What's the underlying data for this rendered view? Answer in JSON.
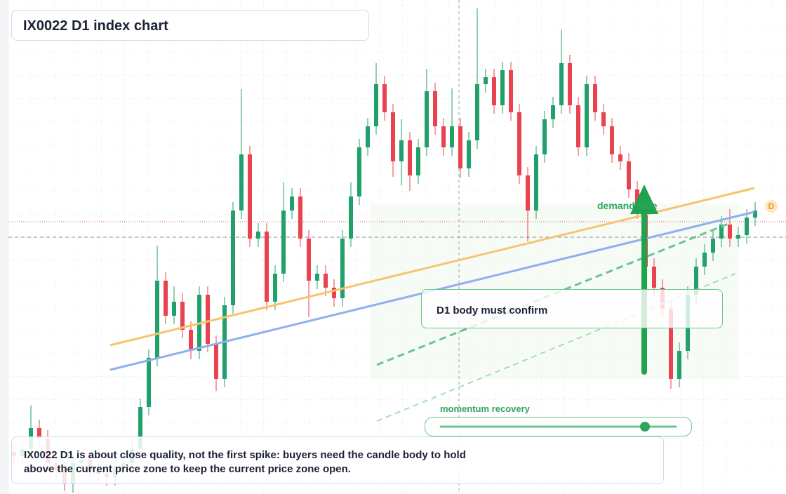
{
  "header": {
    "title": "IX0022 D1 index chart"
  },
  "chart_data": {
    "type": "candlestick",
    "ylim": [
      0,
      704
    ],
    "up_color": "#22a06b",
    "down_color": "#e8434f",
    "open": [
      60,
      54,
      64,
      94,
      79,
      44,
      34,
      14,
      44,
      49,
      34,
      29,
      24,
      39,
      44,
      64,
      124,
      194,
      304,
      254,
      274,
      234,
      204,
      284,
      214,
      164,
      269,
      404,
      484,
      364,
      374,
      274,
      314,
      404,
      424,
      364,
      304,
      314,
      294,
      279,
      364,
      424,
      494,
      524,
      584,
      544,
      474,
      504,
      454,
      494,
      574,
      524,
      494,
      524,
      464,
      504,
      584,
      594,
      554,
      604,
      544,
      454,
      404,
      484,
      534,
      554,
      614,
      554,
      494,
      584,
      544,
      524,
      484,
      474,
      434,
      404,
      324,
      294,
      264,
      164,
      204,
      284,
      324,
      344,
      364,
      384,
      364,
      369,
      394
    ],
    "high": [
      72,
      76,
      126,
      106,
      91,
      56,
      46,
      56,
      61,
      61,
      46,
      41,
      51,
      56,
      76,
      136,
      206,
      354,
      316,
      296,
      286,
      246,
      296,
      296,
      226,
      281,
      416,
      577,
      496,
      386,
      386,
      326,
      444,
      436,
      436,
      376,
      326,
      326,
      306,
      376,
      444,
      506,
      536,
      614,
      596,
      556,
      534,
      516,
      506,
      606,
      586,
      536,
      578,
      536,
      516,
      692,
      606,
      606,
      616,
      616,
      556,
      466,
      496,
      546,
      566,
      662,
      626,
      566,
      596,
      596,
      556,
      536,
      496,
      486,
      446,
      416,
      336,
      306,
      276,
      216,
      296,
      336,
      356,
      376,
      396,
      406,
      381,
      406,
      416
    ],
    "low": [
      42,
      42,
      52,
      67,
      32,
      22,
      4,
      2,
      32,
      22,
      17,
      12,
      12,
      27,
      32,
      52,
      112,
      182,
      242,
      242,
      222,
      192,
      192,
      202,
      147,
      152,
      257,
      392,
      352,
      352,
      262,
      262,
      302,
      392,
      352,
      252,
      292,
      282,
      267,
      267,
      352,
      412,
      482,
      512,
      532,
      452,
      440,
      432,
      442,
      482,
      512,
      482,
      482,
      450,
      452,
      492,
      572,
      542,
      542,
      532,
      442,
      360,
      392,
      472,
      522,
      542,
      542,
      482,
      482,
      532,
      512,
      472,
      462,
      422,
      392,
      312,
      282,
      252,
      150,
      152,
      192,
      272,
      312,
      332,
      352,
      352,
      352,
      357,
      382
    ],
    "close": [
      54,
      64,
      94,
      79,
      44,
      34,
      14,
      44,
      49,
      34,
      29,
      24,
      39,
      44,
      64,
      124,
      194,
      304,
      254,
      274,
      234,
      204,
      284,
      214,
      164,
      269,
      404,
      484,
      364,
      374,
      274,
      314,
      404,
      424,
      364,
      304,
      314,
      294,
      279,
      364,
      424,
      494,
      524,
      584,
      544,
      474,
      504,
      454,
      494,
      574,
      524,
      494,
      524,
      464,
      504,
      584,
      594,
      554,
      604,
      544,
      454,
      404,
      484,
      534,
      554,
      614,
      554,
      494,
      584,
      544,
      524,
      484,
      474,
      434,
      404,
      324,
      294,
      264,
      164,
      204,
      284,
      324,
      344,
      364,
      384,
      364,
      369,
      394,
      404
    ],
    "annotations": {
      "zone": "demand side",
      "confirm": "D1 body must confirm",
      "momentum": "momentum recovery",
      "badge": "D"
    },
    "note": "IX0022 D1 is about close quality, not the first spike: buyers need the candle body to hold above the current price zone to keep the current price zone open."
  }
}
